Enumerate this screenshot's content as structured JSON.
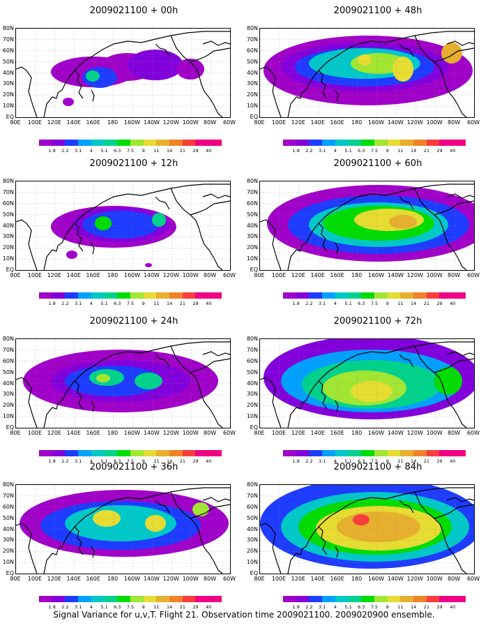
{
  "chart_data": [
    {
      "type": "heatmap",
      "title": "2009021100 + 00h",
      "xticks": [
        "80E",
        "100E",
        "120E",
        "140E",
        "160E",
        "180",
        "160W",
        "140W",
        "120W",
        "100W",
        "80W",
        "60W"
      ],
      "yticks": [
        "EQ",
        "10N",
        "20N",
        "30N",
        "40N",
        "50N",
        "60N",
        "70N",
        "80N"
      ]
    },
    {
      "type": "heatmap",
      "title": "2009021100 + 48h",
      "xticks": [
        "80E",
        "100E",
        "120E",
        "140E",
        "160E",
        "180",
        "160W",
        "140W",
        "120W",
        "100W",
        "80W",
        "60W"
      ],
      "yticks": [
        "EQ",
        "10N",
        "20N",
        "30N",
        "40N",
        "50N",
        "60N",
        "70N",
        "80N"
      ]
    },
    {
      "type": "heatmap",
      "title": "2009021100 + 12h",
      "xticks": [
        "80E",
        "100E",
        "120E",
        "140E",
        "160E",
        "180",
        "160W",
        "140W",
        "120W",
        "100W",
        "80W",
        "60W"
      ],
      "yticks": [
        "EQ",
        "10N",
        "20N",
        "30N",
        "40N",
        "50N",
        "60N",
        "70N",
        "80N"
      ]
    },
    {
      "type": "heatmap",
      "title": "2009021100 + 60h",
      "xticks": [
        "80E",
        "100E",
        "120E",
        "140E",
        "160E",
        "180",
        "160W",
        "140W",
        "120W",
        "100W",
        "80W",
        "60W"
      ],
      "yticks": [
        "EQ",
        "10N",
        "20N",
        "30N",
        "40N",
        "50N",
        "60N",
        "70N",
        "80N"
      ]
    },
    {
      "type": "heatmap",
      "title": "2009021100 + 24h",
      "xticks": [
        "80E",
        "100E",
        "120E",
        "140E",
        "160E",
        "180",
        "160W",
        "140W",
        "120W",
        "100W",
        "80W",
        "60W"
      ],
      "yticks": [
        "EQ",
        "10N",
        "20N",
        "30N",
        "40N",
        "50N",
        "60N",
        "70N",
        "80N"
      ]
    },
    {
      "type": "heatmap",
      "title": "2009021100 + 72h",
      "xticks": [
        "80E",
        "100E",
        "120E",
        "140E",
        "160E",
        "180",
        "160W",
        "140W",
        "120W",
        "100W",
        "80W",
        "60W"
      ],
      "yticks": [
        "EQ",
        "10N",
        "20N",
        "30N",
        "40N",
        "50N",
        "60N",
        "70N",
        "80N"
      ]
    },
    {
      "type": "heatmap",
      "title": "2009021100 + 36h",
      "xticks": [
        "80E",
        "100E",
        "120E",
        "140E",
        "160E",
        "180",
        "160W",
        "140W",
        "120W",
        "100W",
        "80W",
        "60W"
      ],
      "yticks": [
        "EQ",
        "10N",
        "20N",
        "30N",
        "40N",
        "50N",
        "60N",
        "70N",
        "80N"
      ]
    },
    {
      "type": "heatmap",
      "title": "2009021100 + 84h",
      "xticks": [
        "80E",
        "100E",
        "120E",
        "140E",
        "160E",
        "180",
        "160W",
        "140W",
        "120W",
        "100W",
        "80W",
        "60W"
      ],
      "yticks": [
        "EQ",
        "10N",
        "20N",
        "30N",
        "40N",
        "50N",
        "60N",
        "70N",
        "80N"
      ]
    }
  ],
  "legend": {
    "labels": [
      "1.8",
      "2.2",
      "3.1",
      "4",
      "5.1",
      "6.3",
      "7.5",
      "9",
      "11",
      "14",
      "21",
      "29",
      "40"
    ],
    "colors": [
      "#a000c8",
      "#8200dc",
      "#1e3cff",
      "#00a0ff",
      "#00c8c8",
      "#00d28c",
      "#00dc00",
      "#a0e632",
      "#e6dc32",
      "#e6af2d",
      "#f08228",
      "#fa3c3c",
      "#f00082"
    ]
  },
  "caption": "Signal Variance for u,v,T. Flight 21. Observation time 2009021100. 2009020900 ensemble."
}
